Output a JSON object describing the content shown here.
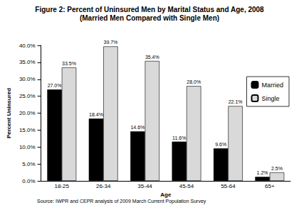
{
  "chart_data": {
    "type": "bar",
    "title": "Figure 2: Percent of Uninsured Men by Marital Status and Age, 2008",
    "subtitle": "(Married Men Compared with Single Men)",
    "x_label": "Age",
    "y_label": "Percent Uninsured",
    "annotation": "Source: IWPR and CEPR analysis of 2009 March Current Population Survey",
    "categories": [
      "18-25",
      "26-34",
      "35-44",
      "45-54",
      "55-64",
      "65+"
    ],
    "series": [
      {
        "name": "Married",
        "color": "#000000",
        "values": [
          27.0,
          18.4,
          14.6,
          11.6,
          9.6,
          1.2
        ],
        "value_labels": [
          "27.0%",
          "18.4%",
          "14.6%",
          "11.6%",
          "9.6%",
          "1.2%"
        ]
      },
      {
        "name": "Single",
        "color": "#d9d9d9",
        "values": [
          33.5,
          39.7,
          35.4,
          28.0,
          22.1,
          2.5
        ],
        "value_labels": [
          "33.5%",
          "39.7%",
          "35.4%",
          "28.0%",
          "22.1%",
          "2.5%"
        ]
      }
    ],
    "ylim": [
      0,
      40
    ],
    "yticks": [
      {
        "value": 0,
        "label": "0.0%"
      },
      {
        "value": 5,
        "label": "5.0%"
      },
      {
        "value": 10,
        "label": "10.0%"
      },
      {
        "value": 15,
        "label": "15.0%"
      },
      {
        "value": 20,
        "label": "20.0%"
      },
      {
        "value": 25,
        "label": "25.0%"
      },
      {
        "value": 30,
        "label": "30.0%"
      },
      {
        "value": 35,
        "label": "35.0%"
      },
      {
        "value": 40,
        "label": "40.0%"
      }
    ],
    "grid": false,
    "legend": "right",
    "data_labels": true
  }
}
